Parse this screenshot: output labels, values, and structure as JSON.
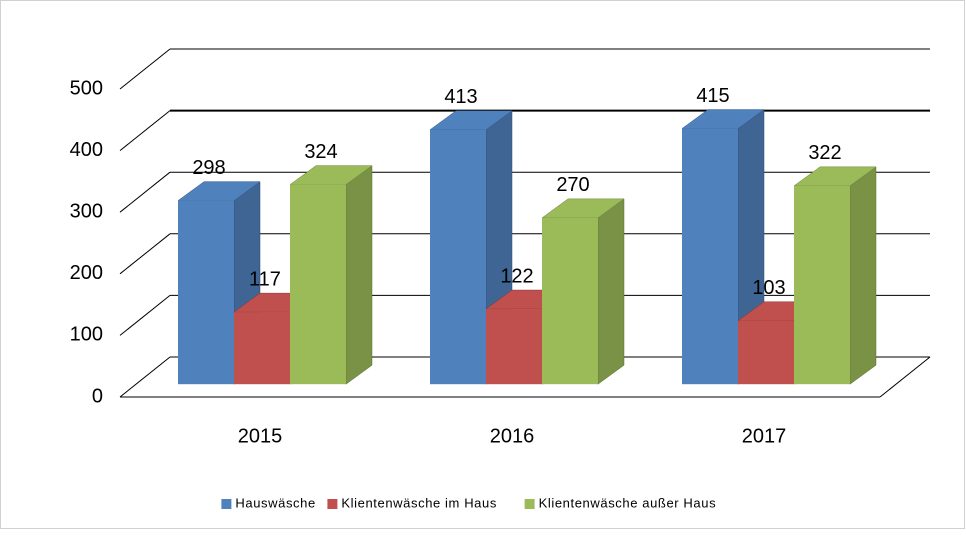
{
  "chart_data": {
    "type": "bar3d",
    "categories": [
      "2015",
      "2016",
      "2017"
    ],
    "series": [
      {
        "name": "Hauswäsche",
        "color": "#4f81bd",
        "values": [
          298,
          413,
          415
        ]
      },
      {
        "name": "Klientenwäsche im Haus",
        "color": "#c0504d",
        "values": [
          117,
          122,
          103
        ]
      },
      {
        "name": "Klientenwäsche außer Haus",
        "color": "#9bbb59",
        "values": [
          324,
          270,
          322
        ]
      }
    ],
    "ylim": [
      0,
      500
    ],
    "yticks": [
      0,
      100,
      200,
      300,
      400,
      500
    ],
    "grid": true,
    "legend": "bottom"
  }
}
